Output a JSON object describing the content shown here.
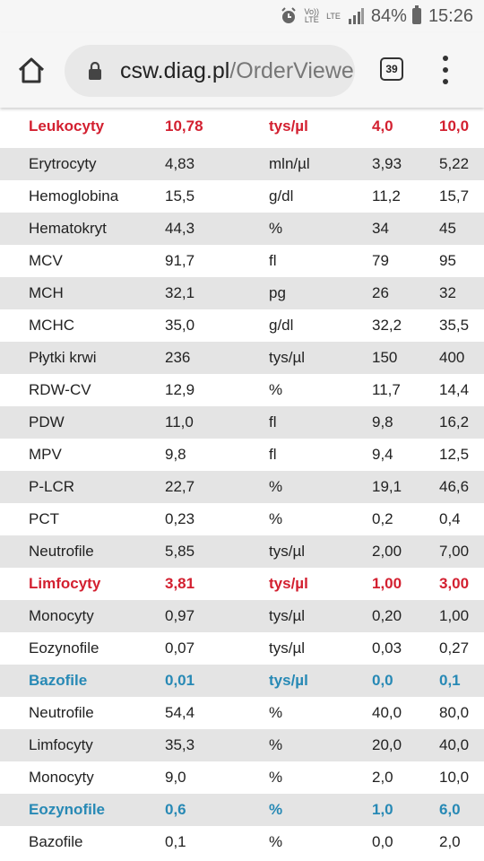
{
  "status_bar": {
    "volte": "Vo))",
    "lte_small": "LTE",
    "lte": "LTE",
    "battery": "84%",
    "time": "15:26"
  },
  "browser": {
    "url_host": "csw.diag.pl",
    "url_path": "/OrderViewe",
    "tab_count": "39"
  },
  "colors": {
    "red": "#d32030",
    "blue": "#2789b5",
    "shaded_row": "#e4e4e4"
  },
  "rows": [
    {
      "name": "Leukocyty",
      "value": "10,78",
      "unit": "tys/µl",
      "min": "4,0",
      "max": "10,0",
      "style": "red"
    },
    {
      "name": "Erytrocyty",
      "value": "4,83",
      "unit": "mln/µl",
      "min": "3,93",
      "max": "5,22",
      "style": "normal"
    },
    {
      "name": "Hemoglobina",
      "value": "15,5",
      "unit": "g/dl",
      "min": "11,2",
      "max": "15,7",
      "style": "normal"
    },
    {
      "name": "Hematokryt",
      "value": "44,3",
      "unit": "%",
      "min": "34",
      "max": "45",
      "style": "normal"
    },
    {
      "name": "MCV",
      "value": "91,7",
      "unit": "fl",
      "min": "79",
      "max": "95",
      "style": "normal"
    },
    {
      "name": "MCH",
      "value": "32,1",
      "unit": "pg",
      "min": "26",
      "max": "32",
      "style": "normal"
    },
    {
      "name": "MCHC",
      "value": "35,0",
      "unit": "g/dl",
      "min": "32,2",
      "max": "35,5",
      "style": "normal"
    },
    {
      "name": "Płytki krwi",
      "value": "236",
      "unit": "tys/µl",
      "min": "150",
      "max": "400",
      "style": "normal"
    },
    {
      "name": "RDW-CV",
      "value": "12,9",
      "unit": "%",
      "min": "11,7",
      "max": "14,4",
      "style": "normal"
    },
    {
      "name": "PDW",
      "value": "11,0",
      "unit": "fl",
      "min": "9,8",
      "max": "16,2",
      "style": "normal"
    },
    {
      "name": "MPV",
      "value": "9,8",
      "unit": "fl",
      "min": "9,4",
      "max": "12,5",
      "style": "normal"
    },
    {
      "name": "P-LCR",
      "value": "22,7",
      "unit": "%",
      "min": "19,1",
      "max": "46,6",
      "style": "normal"
    },
    {
      "name": "PCT",
      "value": "0,23",
      "unit": "%",
      "min": "0,2",
      "max": "0,4",
      "style": "normal"
    },
    {
      "name": "Neutrofile",
      "value": "5,85",
      "unit": "tys/µl",
      "min": "2,00",
      "max": "7,00",
      "style": "normal"
    },
    {
      "name": "Limfocyty",
      "value": "3,81",
      "unit": "tys/µl",
      "min": "1,00",
      "max": "3,00",
      "style": "red"
    },
    {
      "name": "Monocyty",
      "value": "0,97",
      "unit": "tys/µl",
      "min": "0,20",
      "max": "1,00",
      "style": "normal"
    },
    {
      "name": "Eozynofile",
      "value": "0,07",
      "unit": "tys/µl",
      "min": "0,03",
      "max": "0,27",
      "style": "normal"
    },
    {
      "name": "Bazofile",
      "value": "0,01",
      "unit": "tys/µl",
      "min": "0,0",
      "max": "0,1",
      "style": "blue"
    },
    {
      "name": "Neutrofile",
      "value": "54,4",
      "unit": "%",
      "min": "40,0",
      "max": "80,0",
      "style": "normal"
    },
    {
      "name": "Limfocyty",
      "value": "35,3",
      "unit": "%",
      "min": "20,0",
      "max": "40,0",
      "style": "normal"
    },
    {
      "name": "Monocyty",
      "value": "9,0",
      "unit": "%",
      "min": "2,0",
      "max": "10,0",
      "style": "normal"
    },
    {
      "name": "Eozynofile",
      "value": "0,6",
      "unit": "%",
      "min": "1,0",
      "max": "6,0",
      "style": "blue"
    },
    {
      "name": "Bazofile",
      "value": "0,1",
      "unit": "%",
      "min": "0,0",
      "max": "2,0",
      "style": "normal"
    }
  ]
}
